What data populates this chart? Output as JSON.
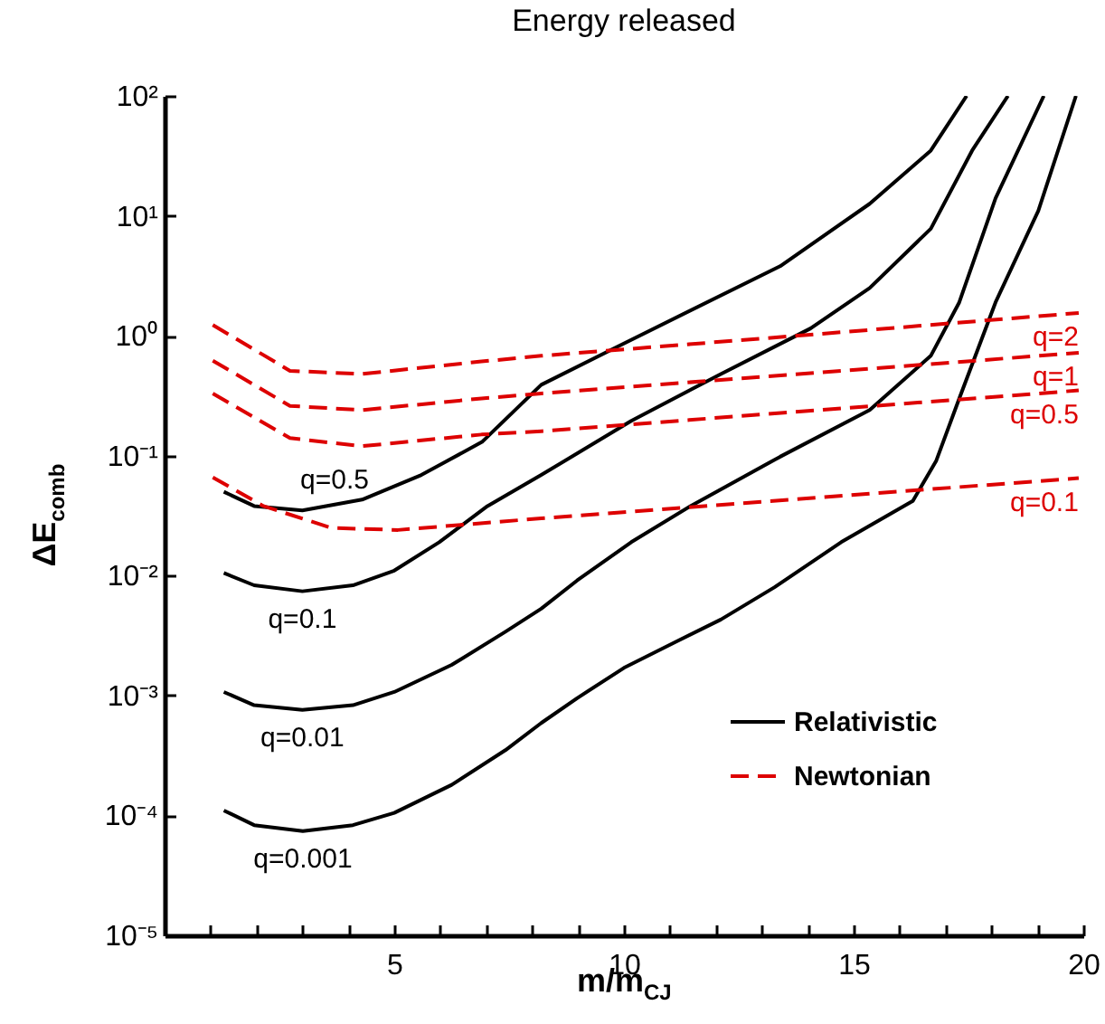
{
  "chart_data": {
    "type": "line",
    "title": "Energy released",
    "xlabel": "m/m$_{CJ}$",
    "ylabel": "ΔE$_{comb}$",
    "log": "y",
    "grid": false,
    "legend": "bottom right",
    "xlim": [
      0,
      20
    ],
    "ylim": [
      1e-05,
      100
    ],
    "xticks": [
      {
        "value": 1,
        "label": null
      },
      {
        "value": 2,
        "label": null
      },
      {
        "value": 3,
        "label": null
      },
      {
        "value": 4,
        "label": null
      },
      5,
      {
        "value": 6,
        "label": null
      },
      {
        "value": 7,
        "label": null
      },
      {
        "value": 8,
        "label": null
      },
      {
        "value": 9,
        "label": null
      },
      10,
      {
        "value": 11,
        "label": null
      },
      {
        "value": 12,
        "label": null
      },
      {
        "value": 13,
        "label": null
      },
      {
        "value": 14,
        "label": null
      },
      15,
      {
        "value": 16,
        "label": null
      },
      {
        "value": 17,
        "label": null
      },
      {
        "value": 18,
        "label": null
      },
      {
        "value": 19,
        "label": null
      },
      20
    ],
    "yticks": [
      {
        "value": 1e-05,
        "label": "10⁻⁵"
      },
      {
        "value": 0.0001,
        "label": "10⁻⁴"
      },
      {
        "value": 0.001,
        "label": "10⁻³"
      },
      {
        "value": 0.01,
        "label": "10⁻²"
      },
      {
        "value": 0.1,
        "label": "10⁻¹"
      },
      {
        "value": 1,
        "label": "10⁰"
      },
      {
        "value": 10,
        "label": "10¹"
      },
      {
        "value": 100,
        "label": "10²"
      }
    ],
    "series": [
      {
        "name": "q=0.5",
        "color": "#000000",
        "line_style": "solid",
        "x": [
          1.29,
          1.95,
          3.0,
          4.3,
          5.59,
          6.91,
          8.2,
          9.77,
          13.4,
          15.35,
          16.68,
          17.46
        ],
        "values": [
          0.05,
          0.038,
          0.035,
          0.043,
          0.069,
          0.13,
          0.39,
          0.78,
          3.8,
          12.6,
          35,
          100
        ]
      },
      {
        "name": "q=0.1",
        "color": "#000000",
        "line_style": "solid",
        "x": [
          1.29,
          1.95,
          3.0,
          4.1,
          5.0,
          5.98,
          7.03,
          8.2,
          10.16,
          12.11,
          14.06,
          15.35,
          16.68,
          17.58,
          18.36
        ],
        "values": [
          0.0105,
          0.0083,
          0.0074,
          0.0083,
          0.011,
          0.019,
          0.038,
          0.069,
          0.195,
          0.48,
          1.15,
          2.5,
          7.8,
          35,
          100
        ]
      },
      {
        "name": "q=0.01",
        "color": "#000000",
        "line_style": "solid",
        "x": [
          1.29,
          1.95,
          3.0,
          4.1,
          5.0,
          6.25,
          7.42,
          8.2,
          8.98,
          10.16,
          11.45,
          13.4,
          15.35,
          16.68,
          17.3,
          18.09,
          19.14
        ],
        "values": [
          0.00107,
          0.00083,
          0.00076,
          0.00083,
          0.00107,
          0.0018,
          0.0034,
          0.0053,
          0.0091,
          0.019,
          0.038,
          0.098,
          0.24,
          0.68,
          1.9,
          14,
          100
        ]
      },
      {
        "name": "q=0.001",
        "color": "#000000",
        "line_style": "solid",
        "x": [
          1.29,
          1.95,
          3.01,
          4.1,
          5.0,
          6.25,
          7.42,
          8.2,
          8.98,
          10.0,
          11.13,
          12.11,
          13.28,
          14.73,
          16.29,
          16.8,
          17.3,
          18.09,
          19.02,
          19.84
        ],
        "values": [
          0.00011,
          8.3e-05,
          7.4e-05,
          8.3e-05,
          0.000105,
          0.00018,
          0.00035,
          0.00059,
          0.00095,
          0.0017,
          0.0028,
          0.0043,
          0.008,
          0.019,
          0.042,
          0.091,
          0.3,
          1.9,
          11,
          100
        ]
      },
      {
        "name": "q=2",
        "color": "#dd0000",
        "line_style": "dashed",
        "x": [
          1.05,
          2.73,
          4.3,
          6.9,
          8.2,
          14.06,
          19.9
        ],
        "values": [
          1.23,
          0.51,
          0.48,
          0.61,
          0.68,
          1.02,
          1.55
        ]
      },
      {
        "name": "q=1",
        "color": "#dd0000",
        "line_style": "dashed",
        "x": [
          1.05,
          2.73,
          4.3,
          6.9,
          8.2,
          19.9
        ],
        "values": [
          0.62,
          0.26,
          0.24,
          0.3,
          0.33,
          0.72
        ]
      },
      {
        "name": "q=0.5",
        "color": "#dd0000",
        "line_style": "dashed",
        "x": [
          1.05,
          2.73,
          4.3,
          6.9,
          8.2,
          19.9
        ],
        "values": [
          0.33,
          0.14,
          0.12,
          0.15,
          0.16,
          0.35
        ]
      },
      {
        "name": "q=0.1",
        "color": "#dd0000",
        "line_style": "dashed",
        "x": [
          1.05,
          2.15,
          3.63,
          5.08,
          8.2,
          19.9
        ],
        "values": [
          0.066,
          0.038,
          0.025,
          0.024,
          0.03,
          0.065
        ]
      }
    ],
    "annotations": [
      "Relativistic",
      "Newtonian"
    ]
  }
}
